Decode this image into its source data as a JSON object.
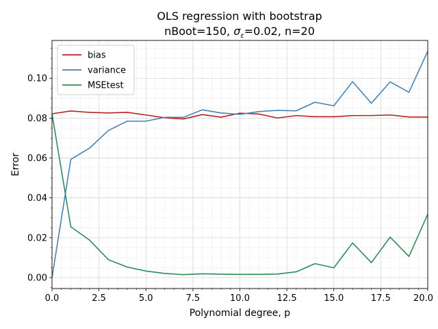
{
  "chart_data": {
    "type": "line",
    "title_line1": "OLS regression with bootstrap",
    "title_line2_prefix": "nBoot=150,  ",
    "title_sigma": "σ",
    "title_sigma_sub": "ε",
    "title_line2_suffix": "=0.02,  n=20",
    "xlabel": "Polynomial degree, p",
    "ylabel": "Error",
    "xlim": [
      0,
      20
    ],
    "ylim": [
      -0.0055,
      0.119
    ],
    "x_ticks": [
      0,
      2.5,
      5,
      7.5,
      10,
      12.5,
      15,
      17.5,
      20
    ],
    "x_tick_labels": [
      "0.0",
      "2.5",
      "5.0",
      "7.5",
      "10.0",
      "12.5",
      "15.0",
      "17.5",
      "20.0"
    ],
    "y_ticks": [
      0,
      0.02,
      0.04,
      0.06,
      0.08,
      0.1
    ],
    "y_tick_labels": [
      "0.00",
      "0.02",
      "0.04",
      "0.06",
      "0.08",
      "0.10"
    ],
    "grid": true,
    "legend_placement": "top-left",
    "x": [
      0,
      1,
      2,
      3,
      4,
      5,
      6,
      7,
      8,
      9,
      10,
      11,
      12,
      13,
      14,
      15,
      16,
      17,
      18,
      19,
      20
    ],
    "series": [
      {
        "name": "bias",
        "color": "#b22222",
        "values": [
          0.0822,
          0.0836,
          0.0829,
          0.0826,
          0.0829,
          0.0816,
          0.0802,
          0.0796,
          0.0818,
          0.0805,
          0.0825,
          0.0821,
          0.0801,
          0.0813,
          0.0807,
          0.0807,
          0.0813,
          0.0813,
          0.0816,
          0.0806,
          0.0806
        ]
      },
      {
        "name": "variance",
        "color": "#4682b4",
        "values": [
          0.0,
          0.0593,
          0.065,
          0.0738,
          0.0785,
          0.0785,
          0.0804,
          0.0804,
          0.0842,
          0.0826,
          0.0819,
          0.0833,
          0.0839,
          0.0837,
          0.088,
          0.0862,
          0.0983,
          0.0875,
          0.0982,
          0.093,
          0.1136
        ]
      },
      {
        "name": "MSEtest",
        "color": "#2e8b57",
        "values": [
          0.0822,
          0.0255,
          0.0188,
          0.009,
          0.0053,
          0.0033,
          0.0021,
          0.0015,
          0.0019,
          0.0017,
          0.0016,
          0.0016,
          0.0018,
          0.0029,
          0.007,
          0.0049,
          0.0174,
          0.0075,
          0.0203,
          0.0106,
          0.0318
        ]
      }
    ]
  }
}
